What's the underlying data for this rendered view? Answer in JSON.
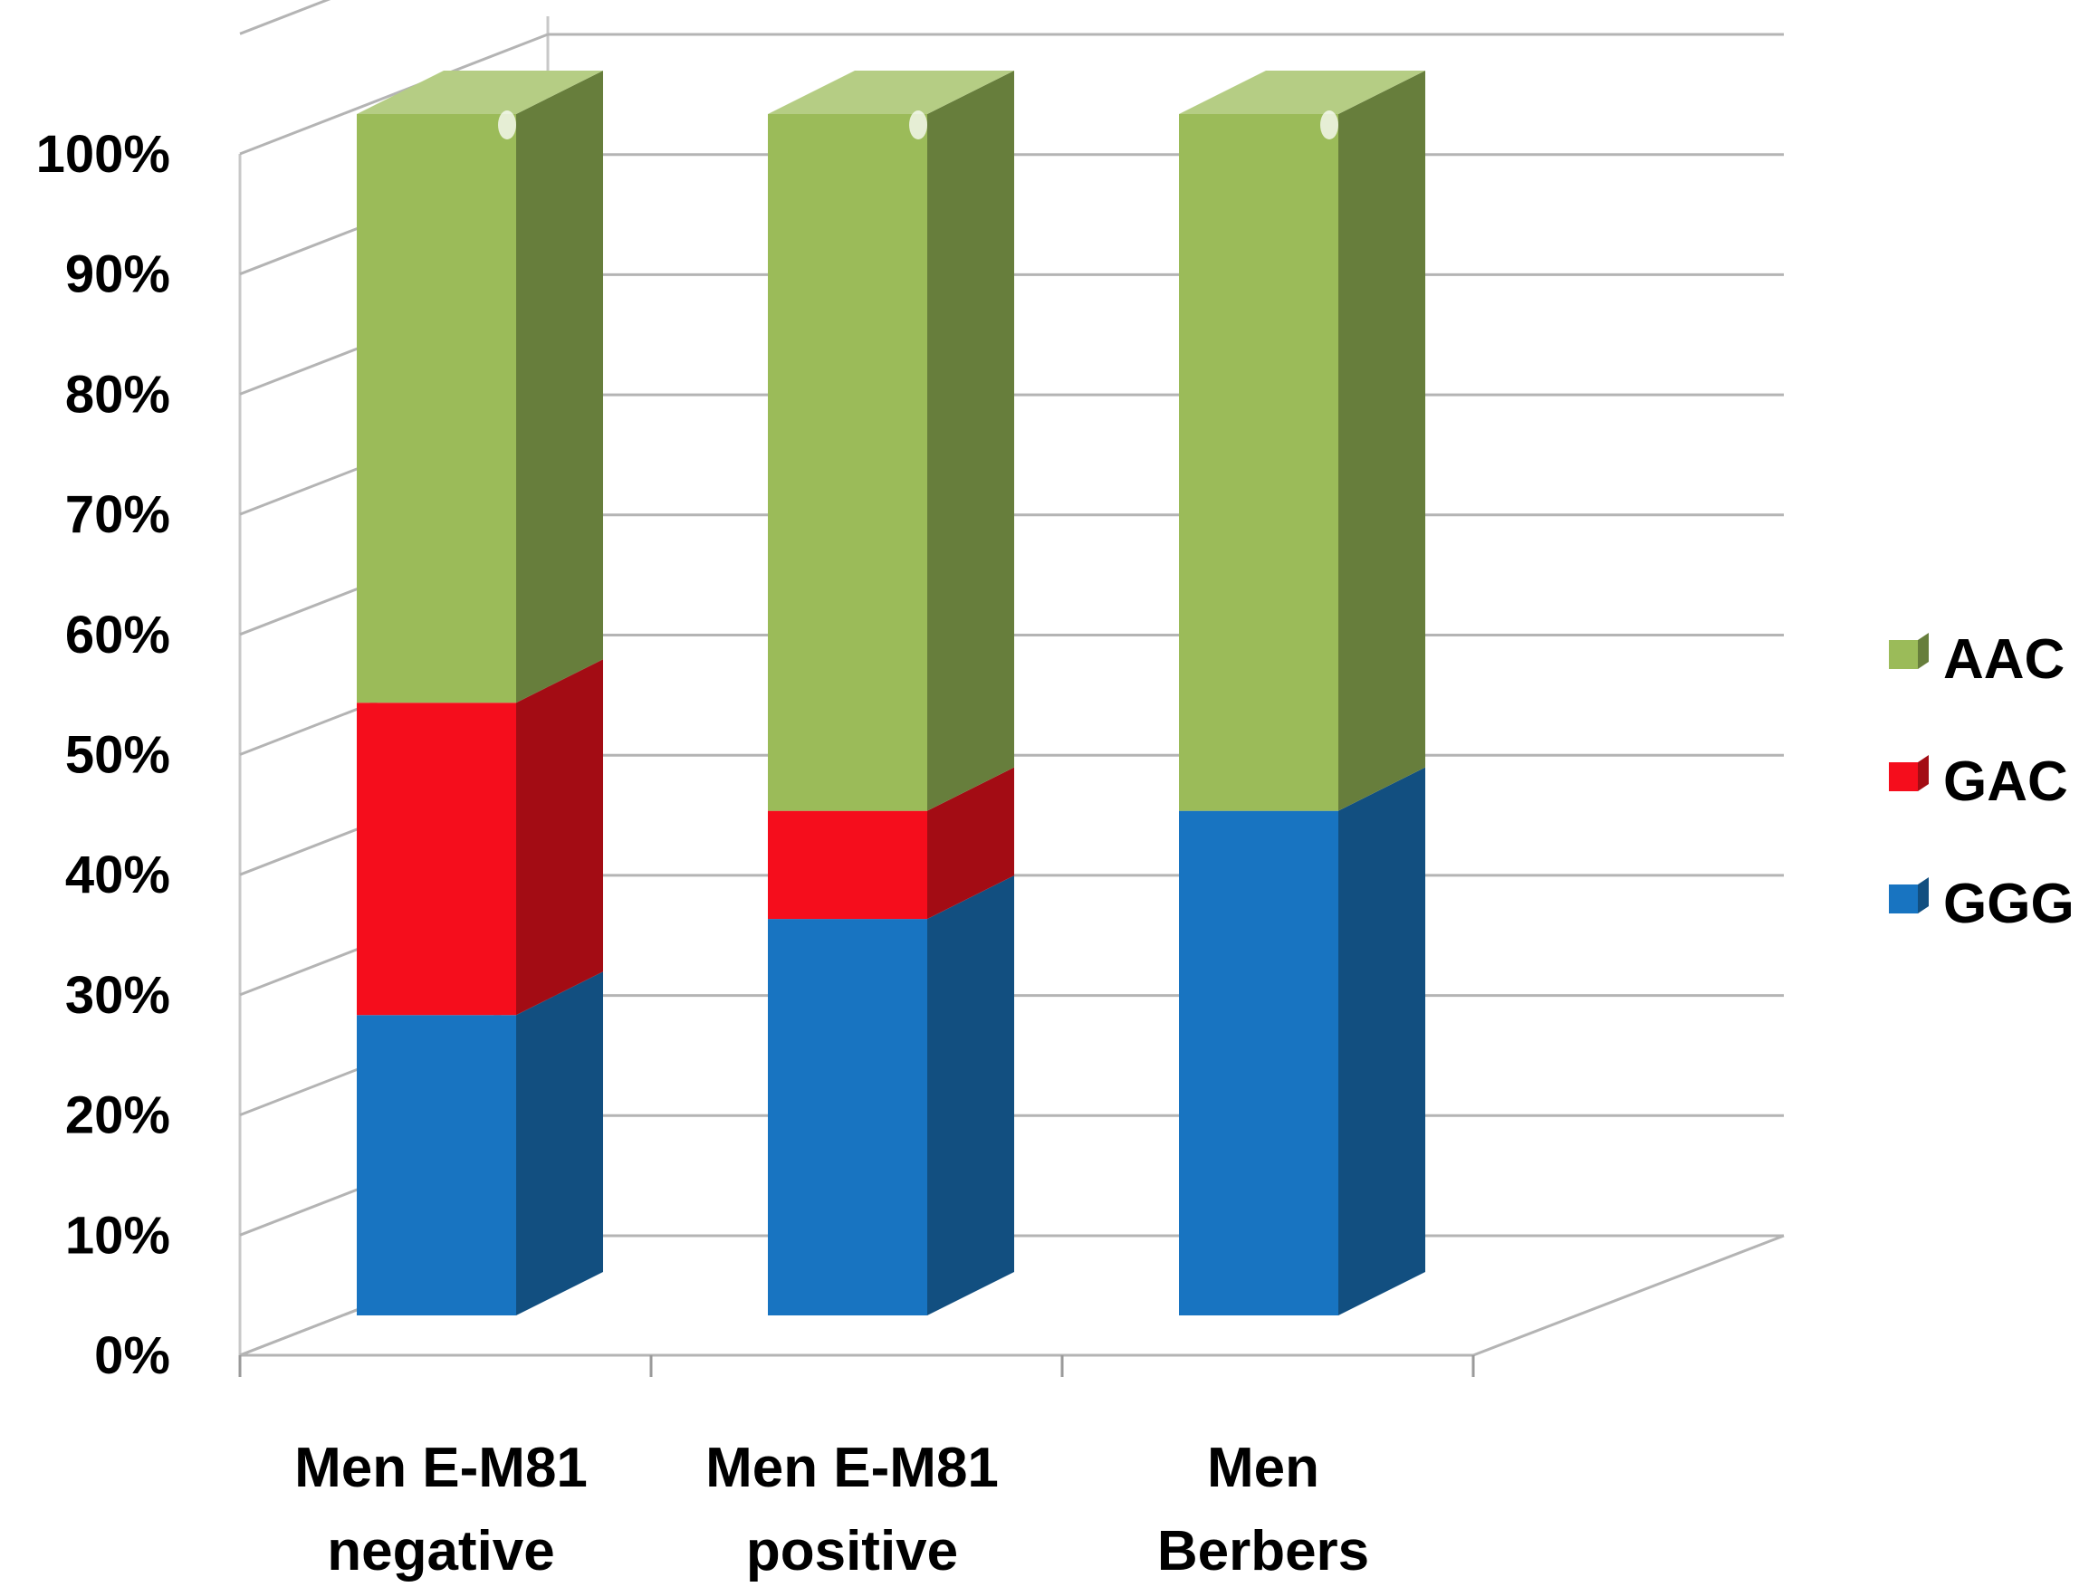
{
  "chart_data": {
    "type": "bar",
    "stacked": true,
    "three_d": true,
    "categories": [
      [
        "Men E-M81",
        "negative"
      ],
      [
        "Men E-M81",
        "positive"
      ],
      [
        "Men",
        "Berbers"
      ]
    ],
    "series": [
      {
        "name": "GGG",
        "values": [
          25,
          33,
          42
        ],
        "color": "#1874c1",
        "side_color": "#124f80"
      },
      {
        "name": "GAC",
        "values": [
          26,
          9,
          0
        ],
        "color": "#f50d1c",
        "side_color": "#a30c14"
      },
      {
        "name": "AAC",
        "values": [
          49,
          58,
          58
        ],
        "color": "#9bbb59",
        "side_color": "#677e3c"
      }
    ],
    "y_ticks": [
      "0%",
      "10%",
      "20%",
      "30%",
      "40%",
      "50%",
      "60%",
      "70%",
      "80%",
      "90%",
      "100%"
    ],
    "ylim": [
      0,
      100
    ],
    "grid": true,
    "legend_position": "right",
    "legend_order": [
      "AAC",
      "GAC",
      "GGG"
    ]
  }
}
